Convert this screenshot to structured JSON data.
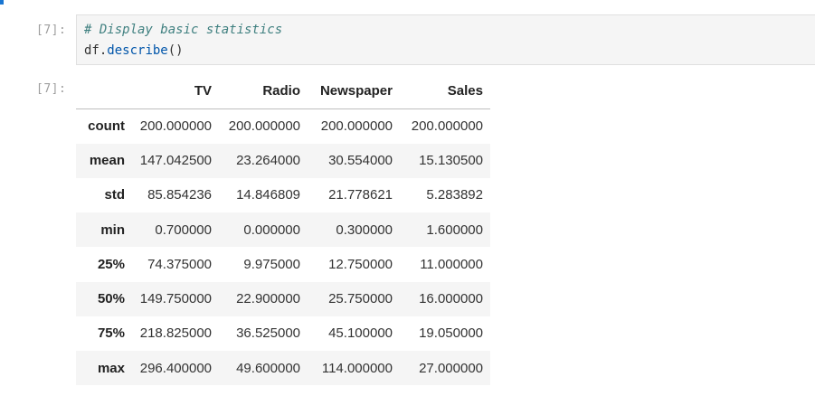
{
  "cell": {
    "input_prompt": "[7]:",
    "output_prompt": "[7]:",
    "code_comment": "# Display basic statistics",
    "code_object": "df.",
    "code_function": "describe",
    "code_parens": "()"
  },
  "table": {
    "columns": [
      "TV",
      "Radio",
      "Newspaper",
      "Sales"
    ],
    "rows": [
      {
        "label": "count",
        "values": [
          "200.000000",
          "200.000000",
          "200.000000",
          "200.000000"
        ]
      },
      {
        "label": "mean",
        "values": [
          "147.042500",
          "23.264000",
          "30.554000",
          "15.130500"
        ]
      },
      {
        "label": "std",
        "values": [
          "85.854236",
          "14.846809",
          "21.778621",
          "5.283892"
        ]
      },
      {
        "label": "min",
        "values": [
          "0.700000",
          "0.000000",
          "0.300000",
          "1.600000"
        ]
      },
      {
        "label": "25%",
        "values": [
          "74.375000",
          "9.975000",
          "12.750000",
          "11.000000"
        ]
      },
      {
        "label": "50%",
        "values": [
          "149.750000",
          "22.900000",
          "25.750000",
          "16.000000"
        ]
      },
      {
        "label": "75%",
        "values": [
          "218.825000",
          "36.525000",
          "45.100000",
          "19.050000"
        ]
      },
      {
        "label": "max",
        "values": [
          "296.400000",
          "49.600000",
          "114.000000",
          "27.000000"
        ]
      }
    ]
  },
  "colors": {
    "accent": "#1976d2",
    "input_background": "#f5f5f5",
    "comment": "#408080",
    "stripe": "#f5f5f5"
  }
}
